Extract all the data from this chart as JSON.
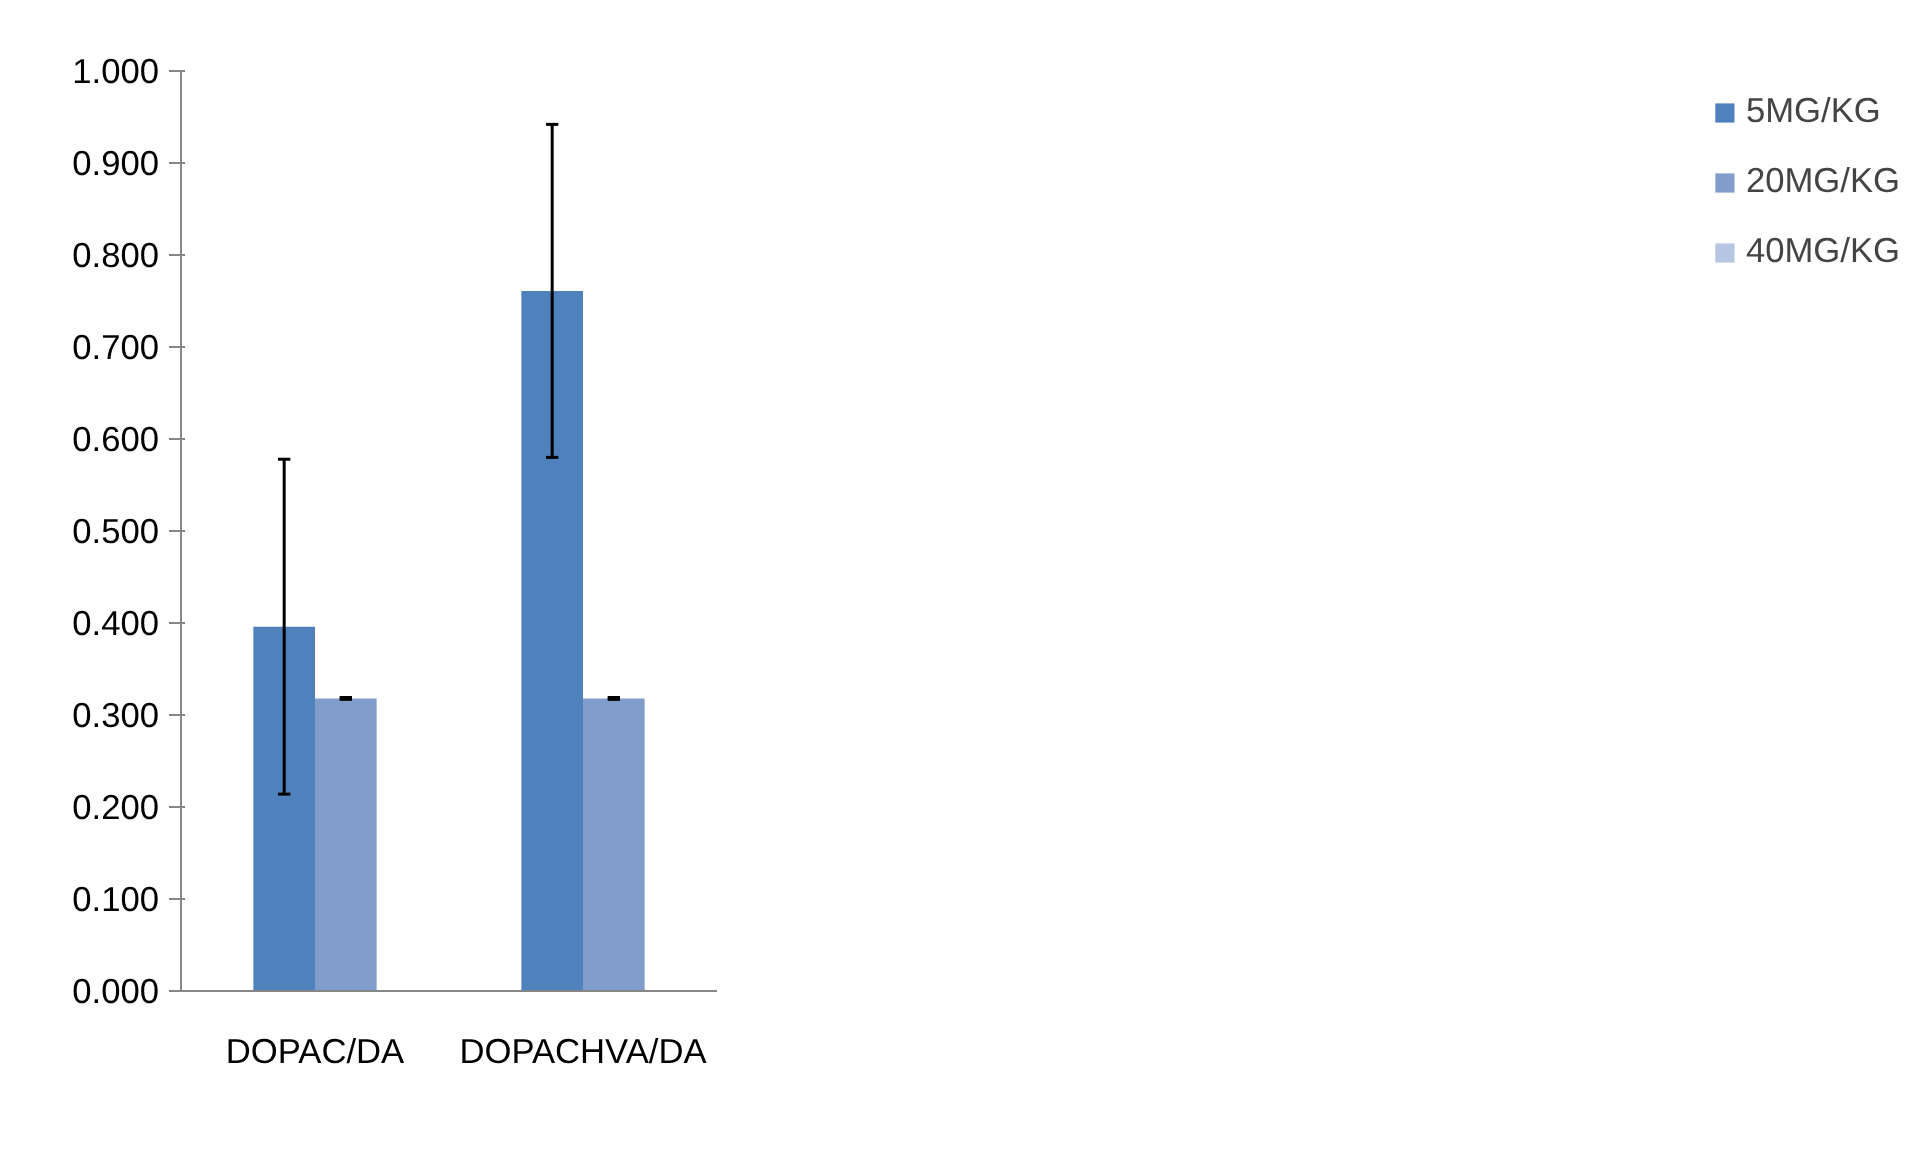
{
  "chart_data": {
    "type": "bar",
    "categories": [
      "DOPAC/DA",
      "DOPACHVA/DA"
    ],
    "series": [
      {
        "color": "#4a6b9f",
        "values": [
          0,
          0
        ]
      },
      {
        "name": "5MG/KG",
        "color": "#4f81bd",
        "values": [
          0.396,
          0.761
        ],
        "errors": [
          0.182,
          0.181
        ]
      },
      {
        "name": "20MG/KG",
        "color": "#809dcb",
        "values": [
          0.318,
          0.318
        ],
        "errors": [
          0.001,
          0.001
        ]
      },
      {
        "name": "40MG/KG",
        "color": "#b7c6e2",
        "values": [
          0,
          0
        ]
      }
    ],
    "ylim": [
      0,
      1
    ],
    "yticks": [
      {
        "value": 0,
        "label": "0.000"
      },
      {
        "value": 0.1,
        "label": "0.100"
      },
      {
        "value": 0.2,
        "label": "0.200"
      },
      {
        "value": 0.3,
        "label": "0.300"
      },
      {
        "value": 0.4,
        "label": "0.400"
      },
      {
        "value": 0.5,
        "label": "0.500"
      },
      {
        "value": 0.6,
        "label": "0.600"
      },
      {
        "value": 0.7,
        "label": "0.700"
      },
      {
        "value": 0.8,
        "label": "0.800"
      },
      {
        "value": 0.9,
        "label": "0.900"
      },
      {
        "value": 1,
        "label": "1.000"
      }
    ],
    "grid": false,
    "legend": "right"
  }
}
